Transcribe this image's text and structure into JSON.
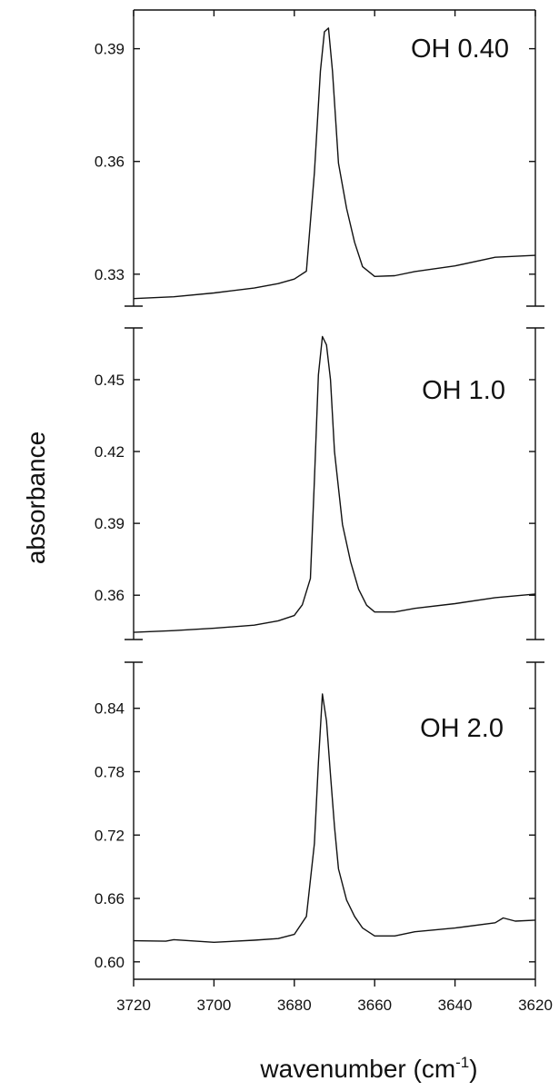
{
  "chart_data": [
    {
      "type": "line",
      "panel_label": "OH 0.40",
      "xlim": [
        3720,
        3620
      ],
      "ylim": [
        0.3215,
        0.4003
      ],
      "y_ticks": [
        "0.33",
        "0.36",
        "0.39"
      ],
      "series": [
        {
          "x": [
            3720,
            3710,
            3700,
            3690,
            3684,
            3680,
            3677,
            3675,
            3673.5,
            3672.5,
            3671.5,
            3670.5,
            3669,
            3667,
            3665,
            3663,
            3660,
            3655,
            3650,
            3640,
            3630,
            3620
          ],
          "y": [
            0.3235,
            0.324,
            0.325,
            0.3263,
            0.3275,
            0.3287,
            0.3308,
            0.357,
            0.384,
            0.3945,
            0.3955,
            0.384,
            0.3595,
            0.3475,
            0.3385,
            0.332,
            0.3294,
            0.3296,
            0.3307,
            0.3322,
            0.3345,
            0.335
          ]
        }
      ]
    },
    {
      "type": "line",
      "panel_label": "OH 1.0",
      "xlim": [
        3720,
        3620
      ],
      "ylim": [
        0.3415,
        0.4716
      ],
      "y_ticks": [
        "0.36",
        "0.39",
        "0.42",
        "0.45"
      ],
      "series": [
        {
          "x": [
            3720,
            3710,
            3700,
            3690,
            3684,
            3680,
            3678,
            3676,
            3675,
            3674,
            3673,
            3672,
            3671,
            3670,
            3668,
            3666,
            3664,
            3662,
            3660,
            3655,
            3650,
            3640,
            3630,
            3620
          ],
          "y": [
            0.3445,
            0.3452,
            0.3462,
            0.3475,
            0.3493,
            0.3515,
            0.356,
            0.367,
            0.408,
            0.452,
            0.468,
            0.4645,
            0.45,
            0.42,
            0.3895,
            0.374,
            0.3625,
            0.3558,
            0.353,
            0.353,
            0.3545,
            0.3565,
            0.359,
            0.3605
          ]
        }
      ]
    },
    {
      "type": "line",
      "panel_label": "OH 2.0",
      "xlim": [
        3720,
        3620
      ],
      "ylim": [
        0.5835,
        0.8836
      ],
      "y_ticks": [
        "0.60",
        "0.66",
        "0.72",
        "0.78",
        "0.84"
      ],
      "series": [
        {
          "x": [
            3720,
            3712,
            3710,
            3700,
            3690,
            3684,
            3680,
            3677,
            3675,
            3674,
            3673,
            3672,
            3671,
            3670,
            3669,
            3667,
            3665,
            3663,
            3660,
            3655,
            3650,
            3640,
            3630,
            3628,
            3625,
            3620
          ],
          "y": [
            0.62,
            0.6195,
            0.621,
            0.6185,
            0.6205,
            0.622,
            0.626,
            0.643,
            0.712,
            0.7885,
            0.8535,
            0.828,
            0.777,
            0.728,
            0.688,
            0.6585,
            0.643,
            0.632,
            0.6245,
            0.6245,
            0.6285,
            0.632,
            0.637,
            0.6415,
            0.6385,
            0.6395
          ]
        }
      ]
    }
  ],
  "x_ticks": [
    "3720",
    "3700",
    "3680",
    "3660",
    "3640",
    "3620"
  ],
  "axis_titles": {
    "y": "absorbance",
    "x_main": "wavenumber (cm",
    "x_superscript": "-1",
    "x_close": ")"
  }
}
